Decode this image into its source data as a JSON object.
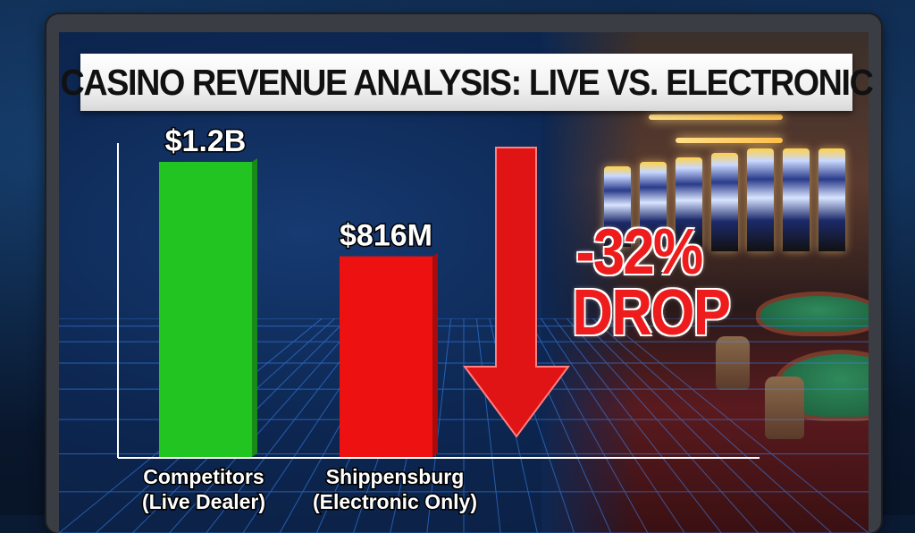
{
  "title": "CASINO REVENUE ANALYSIS: LIVE VS. ELECTRONIC",
  "colors": {
    "competitors_bar": "#22c422",
    "shippensburg_bar": "#ee1111",
    "arrow": "#e01414",
    "drop_text": "#ee1c1c"
  },
  "chart_data": {
    "type": "bar",
    "title": "CASINO REVENUE ANALYSIS: LIVE VS. ELECTRONIC",
    "categories": [
      "Competitors (Live Dealer)",
      "Shippensburg (Electronic Only)"
    ],
    "category_lines": [
      [
        "Competitors",
        "(Live Dealer)"
      ],
      [
        "Shippensburg",
        "(Electronic Only)"
      ]
    ],
    "values": [
      1200,
      816
    ],
    "unit": "M",
    "value_labels": [
      "$1.2B",
      "$816M"
    ],
    "annotations": [
      "-32%",
      "DROP"
    ],
    "ylim": [
      0,
      1200
    ],
    "grid": false
  }
}
